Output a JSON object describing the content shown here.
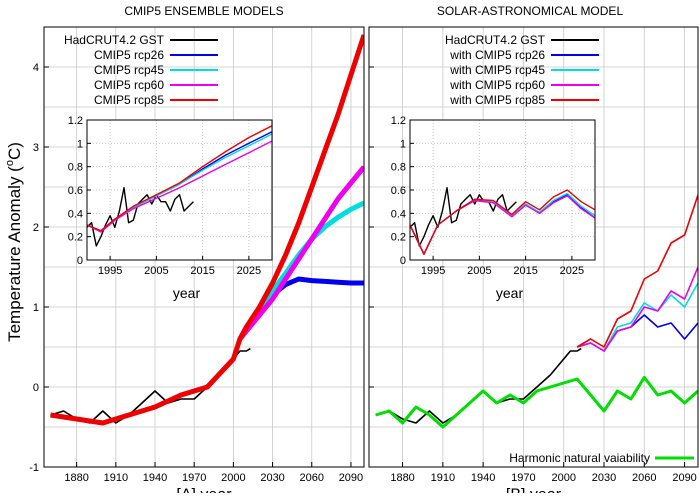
{
  "y_axis_label": "Temperature Anomaly (°C)",
  "y_axis_label_base": "Temperature Anomaly (",
  "y_axis_label_sup": "o",
  "y_axis_label_end": "C)",
  "chart_data": [
    {
      "type": "line",
      "title": "CMIP5 ENSEMBLE MODELS",
      "xlabel": "[A]   year",
      "ylabel": "Temperature Anomaly (°C)",
      "xlim": [
        1855,
        2100
      ],
      "ylim": [
        -1,
        4.5
      ],
      "xticks": [
        1880,
        1910,
        1940,
        1970,
        2000,
        2030,
        2060,
        2090
      ],
      "yticks": [
        -1,
        0,
        1,
        2,
        3,
        4
      ],
      "grid": true,
      "legend": "top-left",
      "series": [
        {
          "name": "HadCRUT4.2 GST",
          "color": "#000000",
          "x": [
            1860,
            1870,
            1880,
            1890,
            1900,
            1910,
            1920,
            1930,
            1940,
            1950,
            1960,
            1970,
            1980,
            1990,
            2000,
            2005,
            2010,
            2013
          ],
          "y": [
            -0.35,
            -0.3,
            -0.4,
            -0.45,
            -0.3,
            -0.45,
            -0.35,
            -0.2,
            -0.05,
            -0.2,
            -0.15,
            -0.15,
            0.0,
            0.15,
            0.35,
            0.45,
            0.45,
            0.48
          ]
        },
        {
          "name": "CMIP5 rcp26",
          "color": "#0000ee",
          "x": [
            2005,
            2010,
            2020,
            2030,
            2040,
            2050,
            2060,
            2070,
            2080,
            2090,
            2100
          ],
          "y": [
            0.6,
            0.72,
            0.95,
            1.15,
            1.28,
            1.35,
            1.33,
            1.32,
            1.31,
            1.3,
            1.3
          ]
        },
        {
          "name": "CMIP5 rcp45",
          "color": "#00dddd",
          "x": [
            2005,
            2010,
            2020,
            2030,
            2040,
            2050,
            2060,
            2070,
            2080,
            2090,
            2100
          ],
          "y": [
            0.6,
            0.72,
            0.95,
            1.2,
            1.42,
            1.65,
            1.85,
            2.0,
            2.12,
            2.22,
            2.3
          ]
        },
        {
          "name": "CMIP5 rcp60",
          "color": "#ee00ee",
          "x": [
            2005,
            2010,
            2020,
            2030,
            2040,
            2050,
            2060,
            2070,
            2080,
            2090,
            2100
          ],
          "y": [
            0.6,
            0.7,
            0.9,
            1.1,
            1.35,
            1.6,
            1.85,
            2.1,
            2.35,
            2.55,
            2.75
          ]
        },
        {
          "name": "CMIP5 rcp85",
          "color": "#ee0000",
          "x": [
            1860,
            1880,
            1900,
            1920,
            1940,
            1960,
            1980,
            2000,
            2005,
            2010,
            2020,
            2030,
            2040,
            2050,
            2060,
            2070,
            2080,
            2090,
            2100
          ],
          "y": [
            -0.35,
            -0.4,
            -0.45,
            -0.35,
            -0.25,
            -0.1,
            0.0,
            0.35,
            0.6,
            0.75,
            1.0,
            1.3,
            1.65,
            2.05,
            2.5,
            2.95,
            3.4,
            3.9,
            4.4
          ]
        }
      ],
      "inset": {
        "xlabel": "year",
        "xlim": [
          1990,
          2030
        ],
        "ylim": [
          0,
          1.2
        ],
        "xticks": [
          1995,
          2005,
          2015,
          2025
        ],
        "yticks": [
          0,
          0.2,
          0.4,
          0.6,
          0.8,
          1,
          1.2
        ],
        "ytick_labels": [
          "0",
          "0.2",
          "0.4",
          "0.6",
          "0.8",
          "1",
          "1.2"
        ],
        "series": [
          {
            "name": "HadCRUT4.2 GST",
            "color": "#000000",
            "x": [
              1990,
              1991,
              1992,
              1993,
              1994,
              1995,
              1996,
              1997,
              1998,
              1999,
              2000,
              2001,
              2002,
              2003,
              2004,
              2005,
              2006,
              2007,
              2008,
              2009,
              2010,
              2011,
              2012,
              2013
            ],
            "y": [
              0.28,
              0.32,
              0.12,
              0.2,
              0.3,
              0.38,
              0.28,
              0.42,
              0.62,
              0.32,
              0.34,
              0.48,
              0.52,
              0.56,
              0.48,
              0.56,
              0.5,
              0.5,
              0.42,
              0.52,
              0.56,
              0.42,
              0.46,
              0.5
            ]
          },
          {
            "name": "CMIP5 rcp26",
            "color": "#0000ee",
            "x": [
              1990,
              1993,
              1996,
              2000,
              2005,
              2010,
              2015,
              2020,
              2025,
              2030
            ],
            "y": [
              0.3,
              0.25,
              0.35,
              0.45,
              0.55,
              0.65,
              0.78,
              0.9,
              1.0,
              1.1
            ]
          },
          {
            "name": "CMIP5 rcp45",
            "color": "#00dddd",
            "x": [
              1990,
              1993,
              1996,
              2000,
              2005,
              2010,
              2015,
              2020,
              2025,
              2030
            ],
            "y": [
              0.3,
              0.25,
              0.35,
              0.45,
              0.55,
              0.65,
              0.77,
              0.88,
              0.98,
              1.08
            ]
          },
          {
            "name": "CMIP5 rcp60",
            "color": "#ee00ee",
            "x": [
              1990,
              1993,
              1996,
              2000,
              2005,
              2010,
              2015,
              2020,
              2025,
              2030
            ],
            "y": [
              0.3,
              0.24,
              0.34,
              0.44,
              0.53,
              0.62,
              0.72,
              0.82,
              0.92,
              1.02
            ]
          },
          {
            "name": "CMIP5 rcp85",
            "color": "#ee0000",
            "x": [
              1990,
              1993,
              1996,
              2000,
              2005,
              2010,
              2015,
              2020,
              2025,
              2030
            ],
            "y": [
              0.3,
              0.25,
              0.35,
              0.46,
              0.56,
              0.66,
              0.8,
              0.93,
              1.05,
              1.15
            ]
          }
        ]
      }
    },
    {
      "type": "line",
      "title": "SOLAR-ASTRONOMICAL MODEL",
      "xlabel": "[B]   year",
      "xlim": [
        1855,
        2100
      ],
      "ylim": [
        -1,
        4.5
      ],
      "xticks": [
        1880,
        1910,
        1940,
        1970,
        2000,
        2030,
        2060,
        2090
      ],
      "yticks": [
        -1,
        0,
        1,
        2,
        3,
        4
      ],
      "grid": true,
      "legend": "top-left",
      "series": [
        {
          "name": "HadCRUT4.2 GST",
          "color": "#000000",
          "x": [
            1860,
            1870,
            1880,
            1890,
            1900,
            1910,
            1920,
            1930,
            1940,
            1950,
            1960,
            1970,
            1980,
            1990,
            2000,
            2005,
            2010,
            2013
          ],
          "y": [
            -0.35,
            -0.3,
            -0.4,
            -0.45,
            -0.3,
            -0.45,
            -0.35,
            -0.2,
            -0.05,
            -0.2,
            -0.15,
            -0.15,
            0.0,
            0.15,
            0.35,
            0.45,
            0.45,
            0.48
          ]
        },
        {
          "name": "with CMIP5 rcp26",
          "color": "#0000ee",
          "x": [
            2010,
            2020,
            2030,
            2040,
            2050,
            2060,
            2070,
            2080,
            2090,
            2100
          ],
          "y": [
            0.5,
            0.55,
            0.45,
            0.7,
            0.75,
            0.9,
            0.75,
            0.8,
            0.6,
            0.8
          ]
        },
        {
          "name": "with CMIP5 rcp45",
          "color": "#00dddd",
          "x": [
            2010,
            2020,
            2030,
            2040,
            2050,
            2060,
            2070,
            2080,
            2090,
            2100
          ],
          "y": [
            0.5,
            0.55,
            0.45,
            0.75,
            0.8,
            1.05,
            0.95,
            1.15,
            1.0,
            1.3
          ]
        },
        {
          "name": "with CMIP5 rcp60",
          "color": "#ee00ee",
          "x": [
            2010,
            2020,
            2030,
            2040,
            2050,
            2060,
            2070,
            2080,
            2090,
            2100
          ],
          "y": [
            0.5,
            0.55,
            0.45,
            0.7,
            0.75,
            1.0,
            0.95,
            1.2,
            1.1,
            1.5
          ]
        },
        {
          "name": "with CMIP5 rcp85",
          "color": "#ee0000",
          "x": [
            2010,
            2020,
            2030,
            2040,
            2050,
            2060,
            2070,
            2080,
            2090,
            2100
          ],
          "y": [
            0.5,
            0.6,
            0.5,
            0.85,
            0.95,
            1.35,
            1.45,
            1.8,
            1.9,
            2.4
          ]
        },
        {
          "name": "Harmonic natural vaiability",
          "color": "#00dd00",
          "x": [
            1860,
            1870,
            1880,
            1890,
            1900,
            1910,
            1920,
            1930,
            1940,
            1950,
            1960,
            1970,
            1980,
            1990,
            2000,
            2010,
            2020,
            2030,
            2040,
            2050,
            2060,
            2070,
            2080,
            2090,
            2100
          ],
          "y": [
            -0.35,
            -0.3,
            -0.45,
            -0.25,
            -0.35,
            -0.5,
            -0.35,
            -0.2,
            -0.05,
            -0.2,
            -0.1,
            -0.2,
            -0.05,
            0.0,
            0.05,
            0.1,
            -0.1,
            -0.3,
            -0.05,
            -0.15,
            0.12,
            -0.1,
            -0.05,
            -0.2,
            -0.05
          ]
        }
      ],
      "inset": {
        "xlabel": "year",
        "xlim": [
          1990,
          2030
        ],
        "ylim": [
          0,
          1.2
        ],
        "xticks": [
          1995,
          2005,
          2015,
          2025
        ],
        "yticks": [
          0,
          0.2,
          0.4,
          0.6,
          0.8,
          1,
          1.2
        ],
        "ytick_labels": [
          "0",
          "0.2",
          "0.4",
          "0.6",
          "0.8",
          "1",
          "1.2"
        ],
        "series": [
          {
            "name": "HadCRUT4.2 GST",
            "color": "#000000",
            "x": [
              1990,
              1991,
              1992,
              1993,
              1994,
              1995,
              1996,
              1997,
              1998,
              1999,
              2000,
              2001,
              2002,
              2003,
              2004,
              2005,
              2006,
              2007,
              2008,
              2009,
              2010,
              2011,
              2012,
              2013
            ],
            "y": [
              0.28,
              0.32,
              0.12,
              0.2,
              0.3,
              0.38,
              0.28,
              0.42,
              0.62,
              0.32,
              0.34,
              0.48,
              0.52,
              0.56,
              0.48,
              0.56,
              0.5,
              0.5,
              0.42,
              0.52,
              0.56,
              0.42,
              0.46,
              0.5
            ]
          },
          {
            "name": "with CMIP5 rcp26",
            "color": "#0000ee",
            "x": [
              1990,
              1993,
              1996,
              2000,
              2004,
              2008,
              2012,
              2015,
              2018,
              2021,
              2024,
              2027,
              2030
            ],
            "y": [
              0.3,
              0.05,
              0.3,
              0.42,
              0.52,
              0.5,
              0.38,
              0.48,
              0.4,
              0.5,
              0.56,
              0.45,
              0.36
            ]
          },
          {
            "name": "with CMIP5 rcp45",
            "color": "#00dddd",
            "x": [
              1990,
              1993,
              1996,
              2000,
              2004,
              2008,
              2012,
              2015,
              2018,
              2021,
              2024,
              2027,
              2030
            ],
            "y": [
              0.3,
              0.05,
              0.3,
              0.42,
              0.52,
              0.5,
              0.38,
              0.48,
              0.41,
              0.51,
              0.57,
              0.46,
              0.38
            ]
          },
          {
            "name": "with CMIP5 rcp60",
            "color": "#ee00ee",
            "x": [
              1990,
              1993,
              1996,
              2000,
              2004,
              2008,
              2012,
              2015,
              2018,
              2021,
              2024,
              2027,
              2030
            ],
            "y": [
              0.3,
              0.05,
              0.3,
              0.42,
              0.51,
              0.49,
              0.37,
              0.47,
              0.4,
              0.49,
              0.55,
              0.44,
              0.36
            ]
          },
          {
            "name": "with CMIP5 rcp85",
            "color": "#ee0000",
            "x": [
              1990,
              1993,
              1996,
              2000,
              2004,
              2008,
              2012,
              2015,
              2018,
              2021,
              2024,
              2027,
              2030
            ],
            "y": [
              0.3,
              0.05,
              0.3,
              0.42,
              0.52,
              0.51,
              0.39,
              0.5,
              0.43,
              0.54,
              0.6,
              0.5,
              0.43
            ]
          }
        ]
      }
    }
  ]
}
